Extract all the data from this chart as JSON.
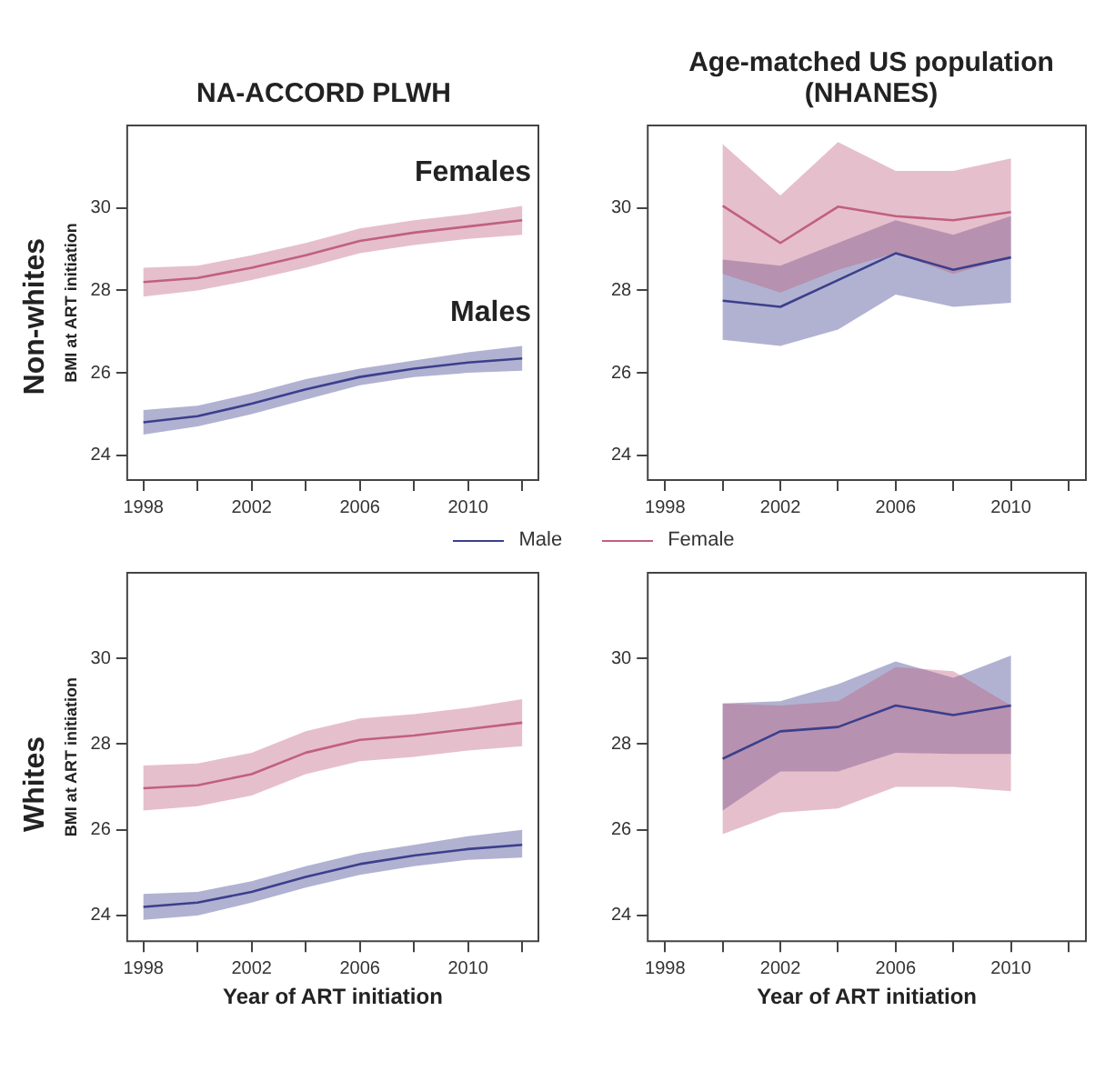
{
  "chart_data": [
    {
      "type": "line",
      "title": "NA-ACCORD PLWH",
      "ylabel": "BMI at ART initiation",
      "annotations": [
        "Non-whites",
        "Females",
        "Males"
      ],
      "x": [
        1998,
        2000,
        2002,
        2004,
        2006,
        2008,
        2010,
        2012
      ],
      "series": [
        {
          "name": "Male",
          "color": "#3b3f8c",
          "values": [
            24.8,
            24.95,
            25.25,
            25.6,
            25.9,
            26.1,
            26.25,
            26.35
          ],
          "lower": [
            24.5,
            24.7,
            25.0,
            25.35,
            25.7,
            25.9,
            26.0,
            26.05
          ],
          "upper": [
            25.1,
            25.2,
            25.5,
            25.85,
            26.1,
            26.3,
            26.5,
            26.65
          ]
        },
        {
          "name": "Female",
          "color": "#c06080",
          "values": [
            28.2,
            28.3,
            28.55,
            28.85,
            29.2,
            29.4,
            29.55,
            29.7
          ],
          "lower": [
            27.85,
            28.0,
            28.25,
            28.55,
            28.9,
            29.1,
            29.25,
            29.35
          ],
          "upper": [
            28.55,
            28.6,
            28.85,
            29.15,
            29.5,
            29.7,
            29.85,
            30.05
          ]
        }
      ],
      "xlim": [
        1997.4,
        2012.6
      ],
      "ylim": [
        23.4,
        32
      ],
      "xticks": [
        1998,
        {
          "value": 2000,
          "label": null
        },
        2002,
        {
          "value": 2004,
          "label": null
        },
        2006,
        {
          "value": 2008,
          "label": null
        },
        2010,
        {
          "value": 2012,
          "label": null
        }
      ],
      "yticks": [
        24,
        26,
        28,
        30
      ],
      "legend": "bottom",
      "marker": "none"
    },
    {
      "type": "line",
      "title": "Age-matched US population (NHANES)",
      "x": [
        2000,
        2002,
        2004,
        2006,
        2008,
        2010
      ],
      "series": [
        {
          "color": "#3b3f8c",
          "values": [
            27.75,
            27.6,
            28.25,
            28.9,
            28.5,
            28.8
          ],
          "lower": [
            26.8,
            26.65,
            27.05,
            27.9,
            27.6,
            27.7
          ],
          "upper": [
            28.75,
            28.6,
            29.15,
            29.7,
            29.35,
            29.8
          ]
        },
        {
          "color": "#c06080",
          "values": [
            30.05,
            29.15,
            30.03,
            29.8,
            29.7,
            29.9
          ],
          "lower": [
            28.4,
            27.95,
            28.5,
            28.9,
            28.4,
            28.8
          ],
          "upper": [
            31.55,
            30.3,
            31.6,
            30.9,
            30.9,
            31.2
          ]
        }
      ],
      "xlim": [
        1997.4,
        2012.6
      ],
      "ylim": [
        23.4,
        32
      ],
      "xticks": [
        1998,
        {
          "value": 2000,
          "label": null
        },
        2002,
        {
          "value": 2004,
          "label": null
        },
        2006,
        {
          "value": 2008,
          "label": null
        },
        2010,
        {
          "value": 2012,
          "label": null
        }
      ],
      "yticks": [
        24,
        26,
        28,
        30
      ],
      "marker": "none"
    },
    {
      "type": "line",
      "xlabel": "Year of ART initiation",
      "ylabel": "BMI at ART initiation",
      "annotations": [
        "Whites"
      ],
      "x": [
        1998,
        2000,
        2002,
        2004,
        2006,
        2008,
        2010,
        2012
      ],
      "series": [
        {
          "color": "#3b3f8c",
          "values": [
            24.2,
            24.3,
            24.55,
            24.9,
            25.2,
            25.4,
            25.55,
            25.65
          ],
          "lower": [
            23.9,
            24.0,
            24.3,
            24.65,
            24.95,
            25.15,
            25.3,
            25.35
          ],
          "upper": [
            24.5,
            24.55,
            24.8,
            25.15,
            25.45,
            25.65,
            25.85,
            26.0
          ]
        },
        {
          "color": "#c06080",
          "values": [
            26.97,
            27.04,
            27.3,
            27.8,
            28.1,
            28.2,
            28.35,
            28.5
          ],
          "lower": [
            26.45,
            26.55,
            26.8,
            27.3,
            27.6,
            27.7,
            27.85,
            27.95
          ],
          "upper": [
            27.5,
            27.55,
            27.8,
            28.3,
            28.6,
            28.7,
            28.85,
            29.05
          ]
        }
      ],
      "xlim": [
        1997.4,
        2012.6
      ],
      "ylim": [
        23.4,
        32
      ],
      "xticks": [
        1998,
        {
          "value": 2000,
          "label": null
        },
        2002,
        {
          "value": 2004,
          "label": null
        },
        2006,
        {
          "value": 2008,
          "label": null
        },
        2010,
        {
          "value": 2012,
          "label": null
        }
      ],
      "yticks": [
        24,
        26,
        28,
        30
      ],
      "marker": "none"
    },
    {
      "type": "line",
      "xlabel": "Year of ART initiation",
      "x": [
        2000,
        2002,
        2004,
        2006,
        2008,
        2010
      ],
      "series": [
        {
          "color": "#3b3f8c",
          "values": [
            27.66,
            28.3,
            28.4,
            28.9,
            28.68,
            28.9
          ],
          "lower": [
            26.45,
            27.36,
            27.36,
            27.8,
            27.77,
            27.77
          ],
          "upper": [
            28.95,
            29.0,
            29.4,
            29.93,
            29.55,
            30.07
          ]
        },
        {
          "color": "#c06080",
          "values": [
            null,
            null,
            null,
            null,
            null,
            null
          ],
          "lower": [
            25.9,
            26.4,
            26.5,
            27.0,
            27.0,
            26.9
          ],
          "upper": [
            28.95,
            28.9,
            29.0,
            29.8,
            29.7,
            28.9
          ]
        }
      ],
      "xlim": [
        1997.4,
        2012.6
      ],
      "ylim": [
        23.4,
        32
      ],
      "xticks": [
        1998,
        {
          "value": 2000,
          "label": null
        },
        2002,
        {
          "value": 2004,
          "label": null
        },
        2006,
        {
          "value": 2008,
          "label": null
        },
        2010,
        {
          "value": 2012,
          "label": null
        }
      ],
      "yticks": [
        24,
        26,
        28,
        30
      ],
      "marker": "none"
    }
  ]
}
